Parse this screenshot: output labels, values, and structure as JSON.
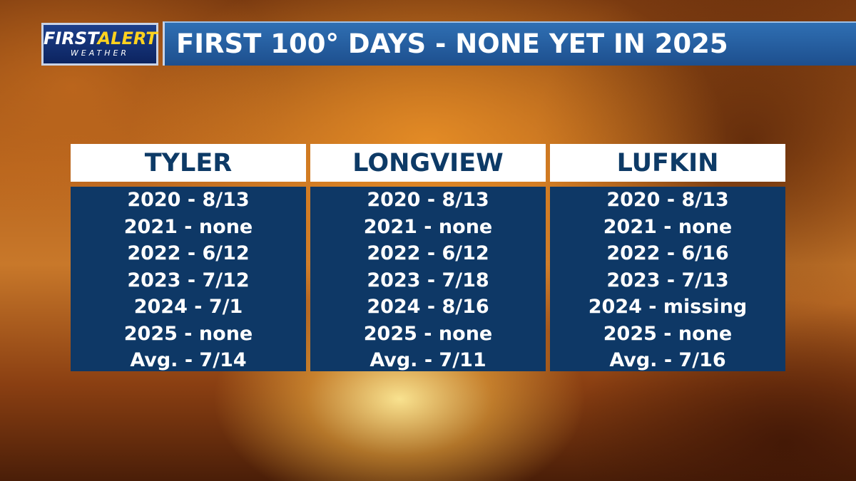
{
  "logo": {
    "first": "FIRST",
    "alert": "ALERT",
    "weather": "WEATHER"
  },
  "title": "FIRST 100° DAYS - NONE YET IN 2025",
  "columns": [
    {
      "name": "TYLER",
      "rows": [
        "2020 - 8/13",
        "2021 - none",
        "2022 - 6/12",
        "2023 - 7/12",
        "2024 - 7/1",
        "2025 - none",
        "Avg. - 7/14"
      ]
    },
    {
      "name": "LONGVIEW",
      "rows": [
        "2020 - 8/13",
        "2021 - none",
        "2022 - 6/12",
        "2023 - 7/18",
        "2024 - 8/16",
        "2025 - none",
        "Avg. - 7/11"
      ]
    },
    {
      "name": "LUFKIN",
      "rows": [
        "2020 - 8/13",
        "2021 - none",
        "2022 - 6/16",
        "2023 - 7/13",
        "2024 - missing",
        "2025 - none",
        "Avg. - 7/16"
      ]
    }
  ]
}
